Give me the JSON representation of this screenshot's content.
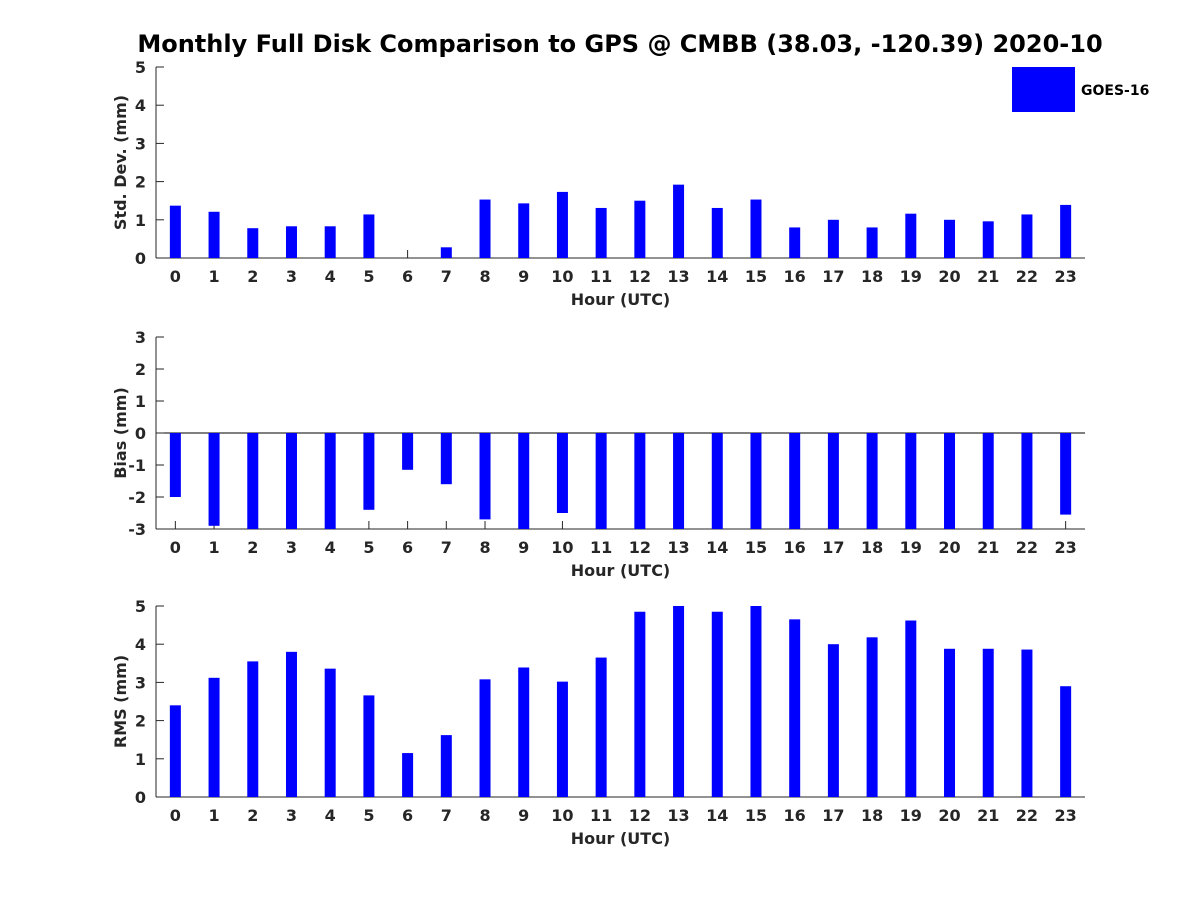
{
  "title": "Monthly Full Disk Comparison to GPS @ CMBB (38.03, -120.39) 2020-10",
  "legend": {
    "label": "GOES-16",
    "color": "#0000ff"
  },
  "chart_data": [
    {
      "type": "bar",
      "xlabel": "Hour (UTC)",
      "ylabel": "Std. Dev. (mm)",
      "ylim": [
        0,
        5
      ],
      "yticks": [
        0,
        1,
        2,
        3,
        4,
        5
      ],
      "categories": [
        "0",
        "1",
        "2",
        "3",
        "4",
        "5",
        "6",
        "7",
        "8",
        "9",
        "10",
        "11",
        "12",
        "13",
        "14",
        "15",
        "16",
        "17",
        "18",
        "19",
        "20",
        "21",
        "22",
        "23"
      ],
      "series": [
        {
          "name": "GOES-16",
          "color": "#0000ff",
          "values": [
            1.37,
            1.21,
            0.78,
            0.83,
            0.83,
            1.14,
            0.0,
            0.28,
            1.53,
            1.43,
            1.73,
            1.31,
            1.5,
            1.92,
            1.31,
            1.53,
            0.8,
            1.0,
            0.8,
            1.16,
            1.0,
            0.96,
            1.14,
            1.39
          ]
        }
      ],
      "grid": false
    },
    {
      "type": "bar",
      "xlabel": "Hour (UTC)",
      "ylabel": "Bias (mm)",
      "ylim": [
        -3,
        3
      ],
      "yticks": [
        -3,
        -2,
        -1,
        0,
        1,
        2,
        3
      ],
      "categories": [
        "0",
        "1",
        "2",
        "3",
        "4",
        "5",
        "6",
        "7",
        "8",
        "9",
        "10",
        "11",
        "12",
        "13",
        "14",
        "15",
        "16",
        "17",
        "18",
        "19",
        "20",
        "21",
        "22",
        "23"
      ],
      "series": [
        {
          "name": "GOES-16",
          "color": "#0000ff",
          "values": [
            -2.0,
            -2.9,
            -3.0,
            -3.0,
            -3.0,
            -2.4,
            -1.15,
            -1.6,
            -2.7,
            -3.0,
            -2.5,
            -3.0,
            -3.0,
            -3.0,
            -3.0,
            -3.0,
            -3.0,
            -3.0,
            -3.0,
            -3.0,
            -3.0,
            -3.0,
            -3.0,
            -2.55
          ]
        }
      ],
      "grid": false
    },
    {
      "type": "bar",
      "xlabel": "Hour (UTC)",
      "ylabel": "RMS (mm)",
      "ylim": [
        0,
        5
      ],
      "yticks": [
        0,
        1,
        2,
        3,
        4,
        5
      ],
      "categories": [
        "0",
        "1",
        "2",
        "3",
        "4",
        "5",
        "6",
        "7",
        "8",
        "9",
        "10",
        "11",
        "12",
        "13",
        "14",
        "15",
        "16",
        "17",
        "18",
        "19",
        "20",
        "21",
        "22",
        "23"
      ],
      "series": [
        {
          "name": "GOES-16",
          "color": "#0000ff",
          "values": [
            2.4,
            3.12,
            3.55,
            3.8,
            3.36,
            2.66,
            1.15,
            1.62,
            3.08,
            3.39,
            3.02,
            3.65,
            4.85,
            5.0,
            4.85,
            5.0,
            4.65,
            4.0,
            4.18,
            4.62,
            3.88,
            3.88,
            3.86,
            2.9
          ]
        }
      ],
      "grid": false
    }
  ]
}
